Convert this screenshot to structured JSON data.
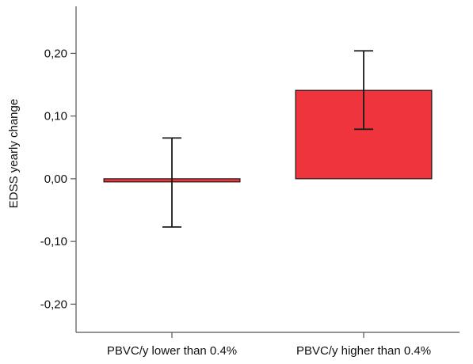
{
  "chart_data": {
    "type": "bar",
    "title": "",
    "xlabel": "",
    "ylabel": "EDSS yearly change",
    "categories": [
      "PBVC/y lower than 0.4%",
      "PBVC/y higher than 0.4%"
    ],
    "values": [
      -0.005,
      0.141
    ],
    "error_bars": [
      {
        "low": -0.077,
        "high": 0.065
      },
      {
        "low": 0.079,
        "high": 0.204
      }
    ],
    "ylim": [
      -0.245,
      0.275
    ],
    "yticks": [
      0.2,
      0.1,
      0.0,
      -0.1,
      -0.2
    ],
    "ytick_labels": [
      "0,20",
      "0,10",
      "0,00",
      "-0,10",
      "-0,20"
    ],
    "grid": false,
    "colors": {
      "bar_fill": "#f0343e",
      "bar_stroke": "#1a1a1a",
      "axis": "#555555",
      "error_bar": "#1a1a1a"
    }
  }
}
